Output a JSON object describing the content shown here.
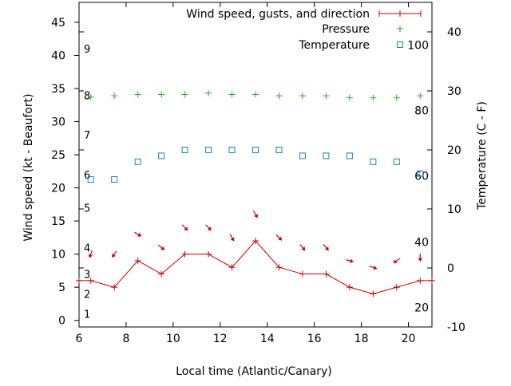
{
  "chart_data": {
    "type": "line",
    "xlabel": "Local time (Atlantic/Canary)",
    "ylabel": "Wind speed (kt - Beaufort)",
    "y2label": "Temperature (C - F)",
    "xlim": [
      6,
      21
    ],
    "xticks": [
      6,
      8,
      10,
      12,
      14,
      16,
      18,
      20
    ],
    "ylim": [
      -1,
      48
    ],
    "yticks": [
      0,
      5,
      10,
      15,
      20,
      25,
      30,
      35,
      40,
      45
    ],
    "y2lim": [
      -10,
      45
    ],
    "y2ticks": [
      -10,
      0,
      10,
      20,
      30,
      40
    ],
    "beaufort_labels": [
      {
        "label": "1",
        "kt": 1
      },
      {
        "label": "2",
        "kt": 4
      },
      {
        "label": "3",
        "kt": 7
      },
      {
        "label": "4",
        "kt": 11
      },
      {
        "label": "5",
        "kt": 17
      },
      {
        "label": "6",
        "kt": 22
      },
      {
        "label": "7",
        "kt": 28
      },
      {
        "label": "8",
        "kt": 34
      },
      {
        "label": "9",
        "kt": 41
      }
    ],
    "fahrenheit_labels": [
      {
        "label": "20",
        "c": -6.7
      },
      {
        "label": "40",
        "c": 4.4
      },
      {
        "label": "60",
        "c": 15.6
      },
      {
        "label": "80",
        "c": 26.7
      },
      {
        "label": "100",
        "c": 37.8
      }
    ],
    "legend_position": "top-right",
    "series": [
      {
        "name": "Wind speed, gusts, and direction",
        "color": "#cc0000",
        "axis": "y1",
        "x": [
          6,
          6.5,
          7.5,
          8.5,
          9.5,
          10.5,
          11.5,
          12.5,
          13.5,
          14.5,
          15.5,
          16.5,
          17.5,
          18.5,
          19.5,
          20.5,
          21
        ],
        "values": [
          6,
          6,
          5,
          9,
          7,
          10,
          10,
          8,
          12,
          8,
          7,
          7,
          5,
          4,
          5,
          6,
          6
        ]
      },
      {
        "name": "Pressure",
        "color": "#22aa22",
        "axis": "y1",
        "x": [
          6.5,
          7.5,
          8.5,
          9.5,
          10.5,
          11.5,
          12.5,
          13.5,
          14.5,
          15.5,
          16.5,
          17.5,
          18.5,
          19.5,
          20.5
        ],
        "values": [
          33.7,
          33.9,
          34.1,
          34.1,
          34.1,
          34.3,
          34.1,
          34.1,
          33.9,
          33.9,
          33.9,
          33.6,
          33.6,
          33.6,
          33.9
        ]
      },
      {
        "name": "Temperature",
        "color": "#1a7fc0",
        "axis": "y2",
        "x": [
          6.5,
          7.5,
          8.5,
          9.5,
          10.5,
          11.5,
          12.5,
          13.5,
          14.5,
          15.5,
          16.5,
          17.5,
          18.5,
          19.5,
          20.5
        ],
        "values": [
          15,
          15,
          18,
          19,
          20,
          20,
          20,
          20,
          20,
          19,
          19,
          19,
          18,
          18,
          16
        ]
      }
    ],
    "wind_arrows": {
      "x": [
        6.5,
        7.5,
        8.5,
        9.5,
        10.5,
        11.5,
        12.5,
        13.5,
        14.5,
        15.5,
        16.5,
        17.5,
        18.5,
        19.5,
        20.5
      ],
      "values": [
        10,
        10,
        13,
        11,
        14,
        14,
        12.5,
        16,
        12.5,
        11,
        11,
        9,
        8,
        9,
        9.5
      ],
      "direction_deg": [
        20,
        35,
        300,
        310,
        315,
        315,
        330,
        330,
        315,
        320,
        320,
        285,
        290,
        55,
        0
      ]
    }
  }
}
